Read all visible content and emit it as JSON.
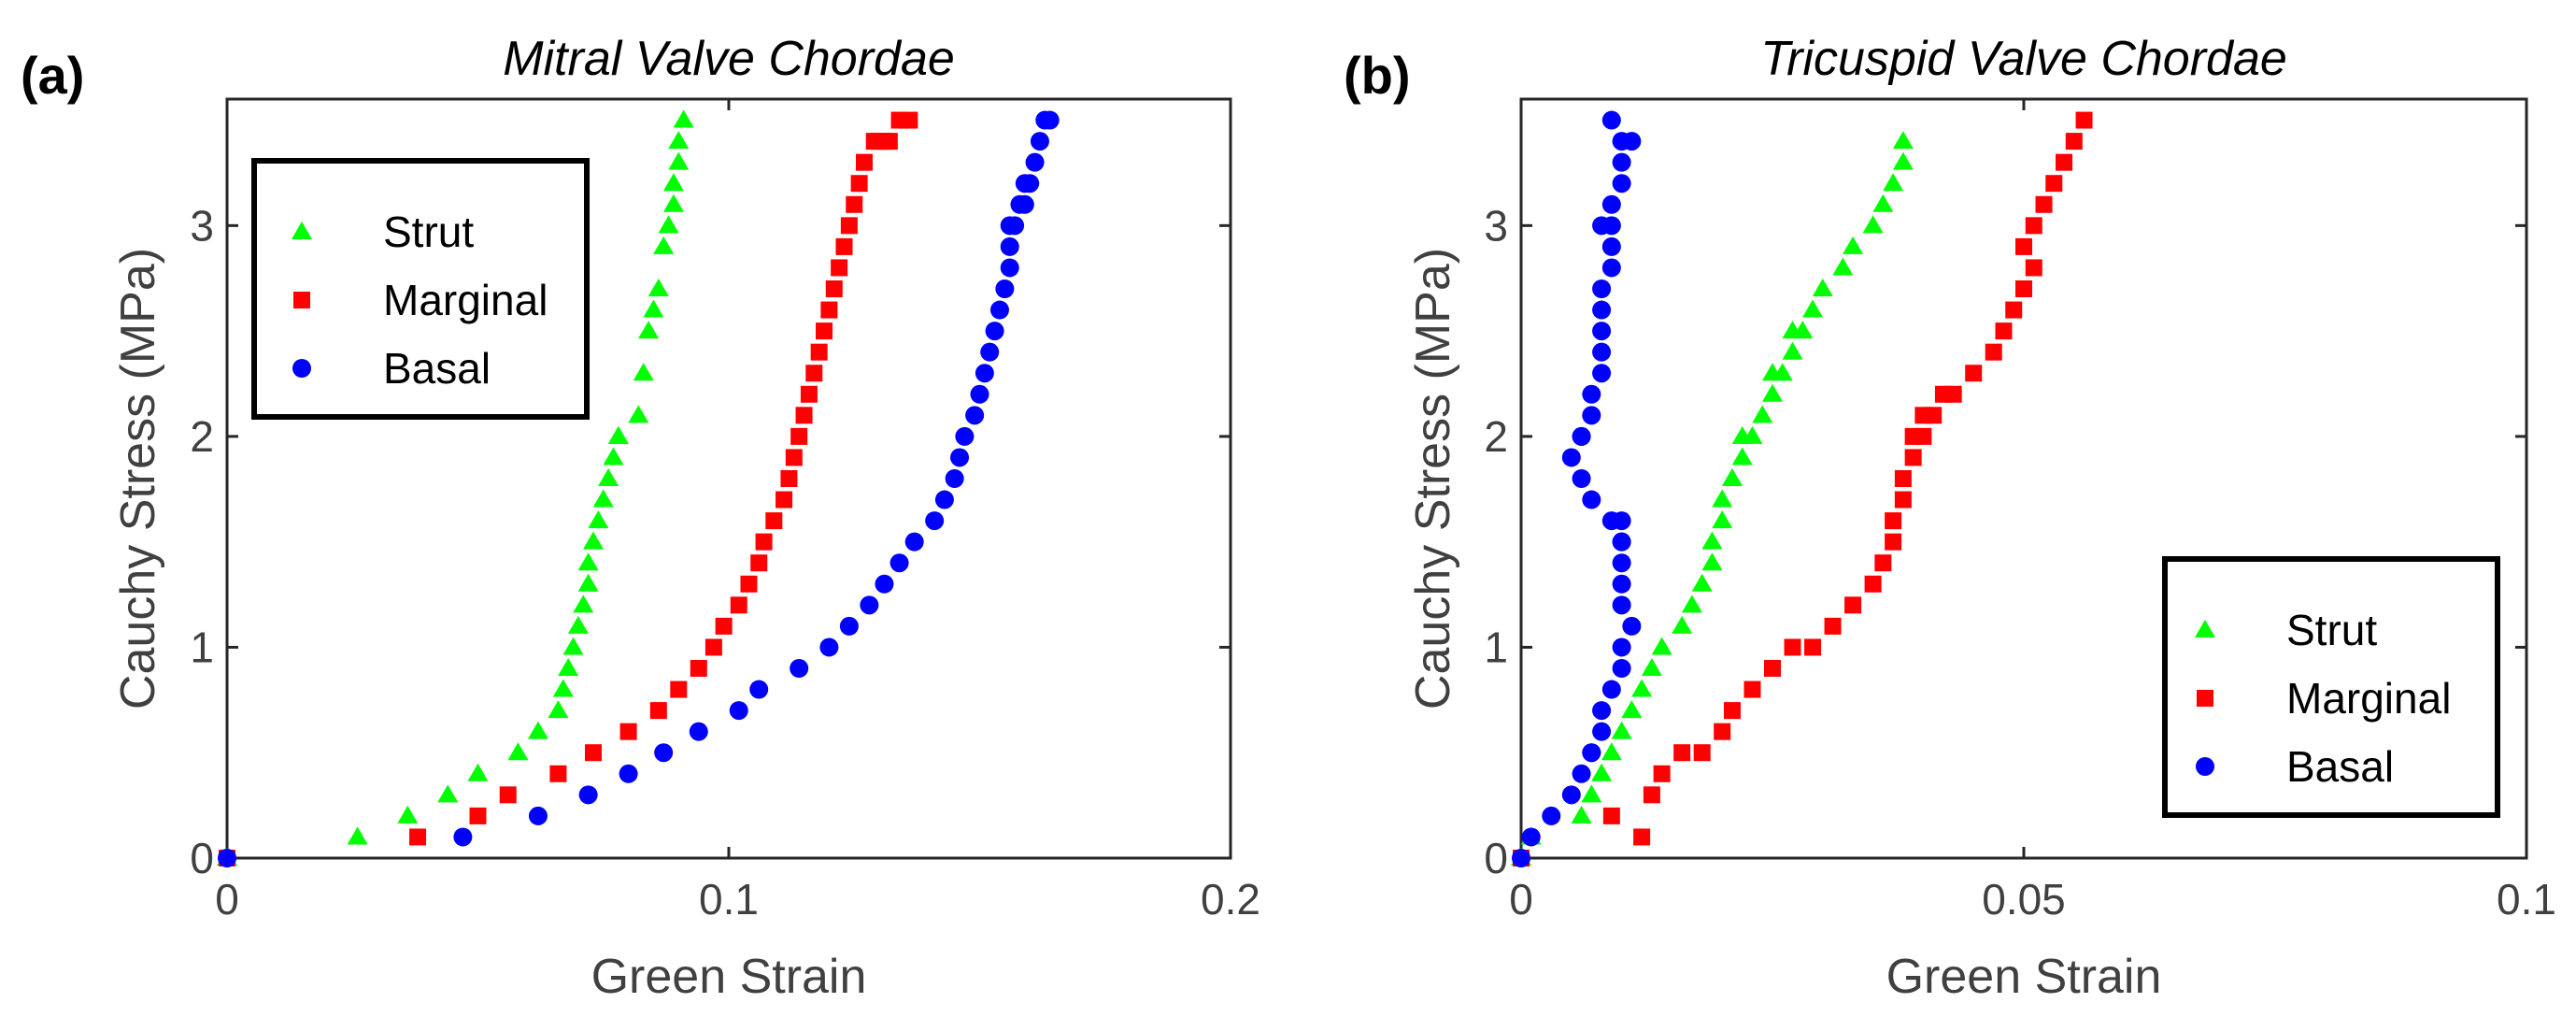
{
  "chart_data": [
    {
      "type": "scatter",
      "panel_label": "(a)",
      "title": "Mitral Valve Chordae",
      "xlabel": "Green Strain",
      "ylabel": "Cauchy Stress (MPa)",
      "xlim": [
        0,
        0.2
      ],
      "ylim": [
        0,
        3.6
      ],
      "xticks": [
        0,
        0.1,
        0.2
      ],
      "xtick_labels": [
        "0",
        "0.1",
        "0.2"
      ],
      "yticks": [
        0,
        1,
        2,
        3
      ],
      "ytick_labels": [
        "0",
        "1",
        "2",
        "3"
      ],
      "legend_position": "top-left",
      "series": [
        {
          "name": "Strut",
          "color": "#00ff00",
          "marker": "triangle",
          "x": [
            0,
            0.026,
            0.036,
            0.044,
            0.05,
            0.058,
            0.062,
            0.066,
            0.067,
            0.068,
            0.069,
            0.07,
            0.071,
            0.072,
            0.072,
            0.073,
            0.074,
            0.075,
            0.076,
            0.077,
            0.078,
            0.078,
            0.082,
            0.083,
            0.084,
            0.085,
            0.086,
            0.087,
            0.088,
            0.089,
            0.089,
            0.09,
            0.09,
            0.091
          ],
          "y": [
            0,
            0.1,
            0.2,
            0.3,
            0.4,
            0.5,
            0.6,
            0.7,
            0.8,
            0.9,
            1.0,
            1.1,
            1.2,
            1.3,
            1.4,
            1.5,
            1.6,
            1.7,
            1.8,
            1.9,
            2.0,
            2.0,
            2.1,
            2.3,
            2.5,
            2.6,
            2.7,
            2.9,
            3.0,
            3.1,
            3.2,
            3.3,
            3.4,
            3.5
          ]
        },
        {
          "name": "Marginal",
          "color": "#ff0000",
          "marker": "square",
          "x": [
            0,
            0.038,
            0.05,
            0.056,
            0.066,
            0.073,
            0.08,
            0.086,
            0.09,
            0.094,
            0.097,
            0.099,
            0.102,
            0.104,
            0.106,
            0.107,
            0.109,
            0.111,
            0.112,
            0.113,
            0.114,
            0.115,
            0.116,
            0.117,
            0.118,
            0.119,
            0.12,
            0.121,
            0.122,
            0.123,
            0.124,
            0.125,
            0.126,
            0.127,
            0.129,
            0.13,
            0.131,
            0.132,
            0.134,
            0.136
          ],
          "y": [
            0,
            0.1,
            0.2,
            0.3,
            0.4,
            0.5,
            0.6,
            0.7,
            0.8,
            0.9,
            1.0,
            1.1,
            1.2,
            1.3,
            1.4,
            1.5,
            1.6,
            1.7,
            1.8,
            1.9,
            2.0,
            2.1,
            2.2,
            2.3,
            2.4,
            2.5,
            2.6,
            2.7,
            2.8,
            2.9,
            3.0,
            3.1,
            3.2,
            3.3,
            3.4,
            3.4,
            3.4,
            3.4,
            3.5,
            3.5
          ]
        },
        {
          "name": "Basal",
          "color": "#0000ff",
          "marker": "circle",
          "x": [
            0,
            0.047,
            0.062,
            0.072,
            0.08,
            0.087,
            0.094,
            0.102,
            0.106,
            0.114,
            0.12,
            0.124,
            0.128,
            0.131,
            0.134,
            0.137,
            0.141,
            0.143,
            0.145,
            0.146,
            0.147,
            0.149,
            0.15,
            0.151,
            0.152,
            0.153,
            0.154,
            0.155,
            0.156,
            0.156,
            0.156,
            0.157,
            0.158,
            0.159,
            0.159,
            0.16,
            0.161,
            0.162,
            0.163,
            0.164
          ],
          "y": [
            0,
            0.1,
            0.2,
            0.3,
            0.4,
            0.5,
            0.6,
            0.7,
            0.8,
            0.9,
            1.0,
            1.1,
            1.2,
            1.3,
            1.4,
            1.5,
            1.6,
            1.7,
            1.8,
            1.9,
            2.0,
            2.1,
            2.2,
            2.3,
            2.4,
            2.5,
            2.6,
            2.7,
            2.8,
            2.9,
            3.0,
            3.0,
            3.1,
            3.1,
            3.2,
            3.2,
            3.3,
            3.4,
            3.5,
            3.5
          ]
        }
      ]
    },
    {
      "type": "scatter",
      "panel_label": "(b)",
      "title": "Tricuspid Valve Chordae",
      "xlabel": "Green Strain",
      "ylabel": "Cauchy Stress (MPa)",
      "xlim": [
        0,
        0.1
      ],
      "ylim": [
        0,
        3.6
      ],
      "xticks": [
        0,
        0.05,
        0.1
      ],
      "xtick_labels": [
        "0",
        "0.05",
        "0.1"
      ],
      "yticks": [
        0,
        1,
        2,
        3
      ],
      "ytick_labels": [
        "0",
        "1",
        "2",
        "3"
      ],
      "legend_position": "bottom-right",
      "series": [
        {
          "name": "Strut",
          "color": "#00ff00",
          "marker": "triangle",
          "x": [
            0,
            0.001,
            0.006,
            0.007,
            0.008,
            0.009,
            0.01,
            0.011,
            0.012,
            0.013,
            0.014,
            0.016,
            0.017,
            0.018,
            0.019,
            0.019,
            0.02,
            0.02,
            0.021,
            0.021,
            0.022,
            0.022,
            0.023,
            0.024,
            0.025,
            0.025,
            0.026,
            0.027,
            0.027,
            0.028,
            0.029,
            0.03,
            0.032,
            0.033,
            0.035,
            0.036,
            0.037,
            0.038,
            0.038
          ],
          "y": [
            0,
            0.1,
            0.2,
            0.3,
            0.4,
            0.5,
            0.6,
            0.7,
            0.8,
            0.9,
            1.0,
            1.1,
            1.2,
            1.3,
            1.4,
            1.5,
            1.6,
            1.7,
            1.8,
            1.8,
            1.9,
            2.0,
            2.0,
            2.1,
            2.2,
            2.3,
            2.3,
            2.4,
            2.5,
            2.5,
            2.6,
            2.7,
            2.8,
            2.9,
            3.0,
            3.1,
            3.2,
            3.3,
            3.4
          ]
        },
        {
          "name": "Marginal",
          "color": "#ff0000",
          "marker": "square",
          "x": [
            0,
            0.009,
            0.012,
            0.013,
            0.014,
            0.016,
            0.018,
            0.02,
            0.021,
            0.023,
            0.025,
            0.027,
            0.029,
            0.031,
            0.033,
            0.035,
            0.036,
            0.037,
            0.037,
            0.038,
            0.038,
            0.039,
            0.039,
            0.04,
            0.04,
            0.041,
            0.042,
            0.043,
            0.045,
            0.047,
            0.048,
            0.049,
            0.05,
            0.05,
            0.051,
            0.051,
            0.052,
            0.053,
            0.054,
            0.055,
            0.056
          ],
          "y": [
            0,
            0.2,
            0.1,
            0.3,
            0.4,
            0.5,
            0.5,
            0.6,
            0.7,
            0.8,
            0.9,
            1.0,
            1.0,
            1.1,
            1.2,
            1.3,
            1.4,
            1.5,
            1.6,
            1.7,
            1.8,
            1.9,
            2.0,
            2.0,
            2.1,
            2.1,
            2.2,
            2.2,
            2.3,
            2.4,
            2.5,
            2.6,
            2.7,
            2.9,
            2.8,
            3.0,
            3.1,
            3.2,
            3.3,
            3.4,
            3.5
          ]
        },
        {
          "name": "Basal",
          "color": "#0000ff",
          "marker": "circle",
          "x": [
            0,
            0.001,
            0.003,
            0.005,
            0.006,
            0.007,
            0.007,
            0.008,
            0.008,
            0.009,
            0.01,
            0.01,
            0.011,
            0.01,
            0.01,
            0.01,
            0.01,
            0.01,
            0.01,
            0.009,
            0.007,
            0.006,
            0.005,
            0.006,
            0.006,
            0.007,
            0.007,
            0.008,
            0.008,
            0.008,
            0.008,
            0.008,
            0.009,
            0.009,
            0.009,
            0.008,
            0.009,
            0.01,
            0.01,
            0.011,
            0.01,
            0.009
          ],
          "y": [
            0,
            0.1,
            0.2,
            0.3,
            0.4,
            0.5,
            0.5,
            0.6,
            0.7,
            0.8,
            0.9,
            1.0,
            1.1,
            1.2,
            1.3,
            1.4,
            1.5,
            1.5,
            1.6,
            1.6,
            1.7,
            1.8,
            1.9,
            2.0,
            2.0,
            2.1,
            2.2,
            2.3,
            2.4,
            2.5,
            2.6,
            2.7,
            2.8,
            2.9,
            3.0,
            3.0,
            3.1,
            3.2,
            3.3,
            3.4,
            3.4,
            3.5
          ]
        }
      ]
    }
  ]
}
